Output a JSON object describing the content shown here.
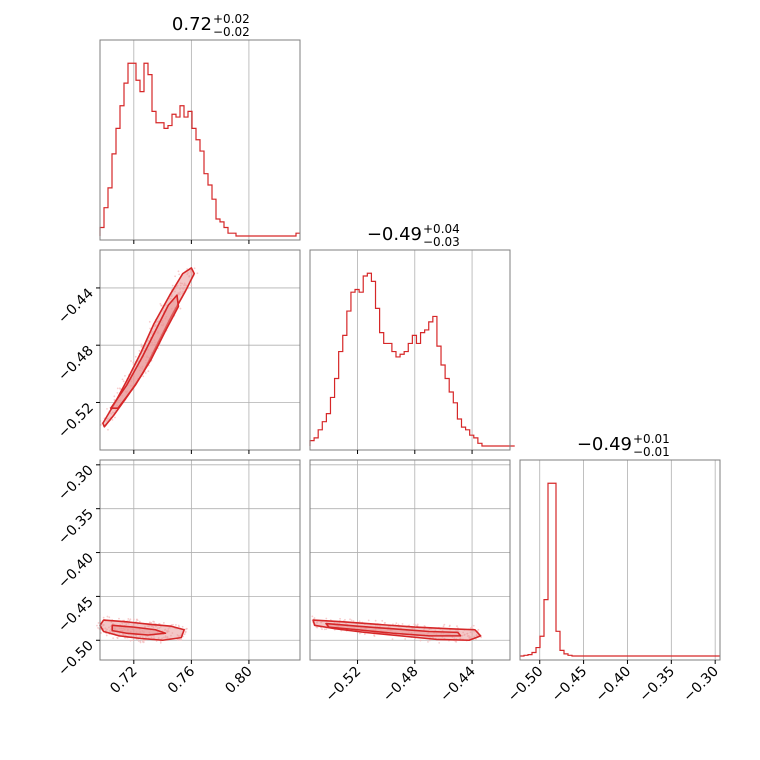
{
  "colors": {
    "series": "#d62728",
    "fill": "#e88f90",
    "grid": "#b0b0b0",
    "frame": "#7f7f7f",
    "scatter": "#f4b8b9"
  },
  "chart_data": {
    "type": "corner",
    "parameters": [
      {
        "id": "p1",
        "title": {
          "median": "0.72",
          "plus": "+0.02",
          "minus": "−0.02"
        },
        "range": [
          0.6965,
          0.8355
        ],
        "ticks": [
          0.72,
          0.76,
          0.8
        ],
        "tick_labels": [
          "0.72",
          "0.76",
          "0.80"
        ],
        "histogram": {
          "edges_start": 0.6965,
          "bin_width": 0.00278,
          "counts": [
            3,
            10,
            17,
            29,
            38,
            46,
            54,
            61,
            61,
            55,
            51,
            61,
            57,
            44,
            40,
            40,
            38,
            39,
            43,
            42,
            46,
            42,
            44,
            38,
            34,
            30,
            22,
            18,
            13,
            6,
            5,
            3,
            1,
            1,
            0,
            0,
            0,
            0,
            0,
            0,
            0,
            0,
            0,
            0,
            0,
            0,
            0,
            0,
            0,
            1
          ]
        }
      },
      {
        "id": "p2",
        "title": {
          "median": "−0.49",
          "plus": "+0.04",
          "minus": "−0.03"
        },
        "range": [
          -0.5532,
          -0.4135
        ],
        "ticks": [
          -0.52,
          -0.48,
          -0.44
        ],
        "tick_labels": [
          "−0.52",
          "−0.48",
          "−0.44"
        ],
        "histogram": {
          "edges_start": -0.5532,
          "bin_width": 0.00286,
          "counts": [
            2,
            3,
            6,
            9,
            12,
            18,
            25,
            35,
            41,
            50,
            57,
            58,
            57,
            63,
            64,
            61,
            51,
            42,
            38,
            38,
            35,
            33,
            34,
            35,
            38,
            41,
            38,
            42,
            43,
            46,
            48,
            37,
            30,
            25,
            20,
            16,
            10,
            7,
            6,
            4,
            3,
            1,
            0,
            0,
            0,
            0,
            0,
            0,
            0,
            0
          ]
        }
      },
      {
        "id": "p3",
        "title": {
          "median": "−0.49",
          "plus": "+0.01",
          "minus": "−0.01"
        },
        "range": [
          -0.5225,
          -0.2945
        ],
        "ticks": [
          -0.5,
          -0.45,
          -0.4,
          -0.35,
          -0.3
        ],
        "tick_labels": [
          "−0.50",
          "−0.45",
          "−0.40",
          "−0.35",
          "−0.30"
        ],
        "histogram": {
          "edges_start": -0.5225,
          "bin_width": 0.00456,
          "counts": [
            0,
            1,
            2,
            5,
            12,
            28,
            80,
            245,
            245,
            35,
            8,
            3,
            1,
            0,
            0,
            0,
            0,
            0,
            0,
            0,
            0,
            0,
            0,
            0,
            0,
            0,
            0,
            0,
            0,
            0,
            0,
            0,
            0,
            0,
            0,
            0,
            0,
            0,
            0,
            0,
            0,
            0,
            0,
            0,
            0,
            0,
            0,
            0,
            0,
            0
          ]
        }
      }
    ],
    "pairs": [
      {
        "x": 0,
        "y": 1,
        "outer": [
          [
            0.6985,
            -0.5345
          ],
          [
            0.707,
            -0.52
          ],
          [
            0.715,
            -0.505
          ],
          [
            0.725,
            -0.485
          ],
          [
            0.734,
            -0.465
          ],
          [
            0.745,
            -0.445
          ],
          [
            0.754,
            -0.43
          ],
          [
            0.76,
            -0.426
          ],
          [
            0.762,
            -0.43
          ],
          [
            0.756,
            -0.442
          ],
          [
            0.746,
            -0.46
          ],
          [
            0.736,
            -0.48
          ],
          [
            0.726,
            -0.5
          ],
          [
            0.716,
            -0.515
          ],
          [
            0.706,
            -0.529
          ],
          [
            0.6995,
            -0.537
          ]
        ],
        "inner": [
          [
            0.704,
            -0.524
          ],
          [
            0.715,
            -0.508
          ],
          [
            0.726,
            -0.488
          ],
          [
            0.736,
            -0.468
          ],
          [
            0.744,
            -0.452
          ],
          [
            0.75,
            -0.445
          ],
          [
            0.751,
            -0.453
          ],
          [
            0.742,
            -0.47
          ],
          [
            0.732,
            -0.49
          ],
          [
            0.721,
            -0.508
          ],
          [
            0.709,
            -0.524
          ]
        ]
      },
      {
        "x": 0,
        "y": 2,
        "outer": [
          [
            0.699,
            -0.477
          ],
          [
            0.715,
            -0.479
          ],
          [
            0.732,
            -0.482
          ],
          [
            0.746,
            -0.484
          ],
          [
            0.755,
            -0.488
          ],
          [
            0.753,
            -0.497
          ],
          [
            0.74,
            -0.5
          ],
          [
            0.725,
            -0.498
          ],
          [
            0.71,
            -0.495
          ],
          [
            0.699,
            -0.49
          ],
          [
            0.6965,
            -0.483
          ]
        ],
        "inner": [
          [
            0.705,
            -0.483
          ],
          [
            0.72,
            -0.485
          ],
          [
            0.735,
            -0.488
          ],
          [
            0.742,
            -0.492
          ],
          [
            0.73,
            -0.494
          ],
          [
            0.715,
            -0.492
          ],
          [
            0.705,
            -0.489
          ]
        ]
      },
      {
        "x": 1,
        "y": 2,
        "outer": [
          [
            -0.551,
            -0.477
          ],
          [
            -0.53,
            -0.479
          ],
          [
            -0.505,
            -0.482
          ],
          [
            -0.48,
            -0.485
          ],
          [
            -0.455,
            -0.487
          ],
          [
            -0.438,
            -0.488
          ],
          [
            -0.434,
            -0.495
          ],
          [
            -0.442,
            -0.5
          ],
          [
            -0.465,
            -0.499
          ],
          [
            -0.49,
            -0.495
          ],
          [
            -0.515,
            -0.491
          ],
          [
            -0.535,
            -0.487
          ],
          [
            -0.55,
            -0.483
          ]
        ],
        "inner": [
          [
            -0.542,
            -0.481
          ],
          [
            -0.52,
            -0.484
          ],
          [
            -0.495,
            -0.487
          ],
          [
            -0.47,
            -0.49
          ],
          [
            -0.45,
            -0.491
          ],
          [
            -0.448,
            -0.495
          ],
          [
            -0.47,
            -0.495
          ],
          [
            -0.495,
            -0.492
          ],
          [
            -0.52,
            -0.488
          ],
          [
            -0.54,
            -0.485
          ]
        ]
      }
    ]
  }
}
